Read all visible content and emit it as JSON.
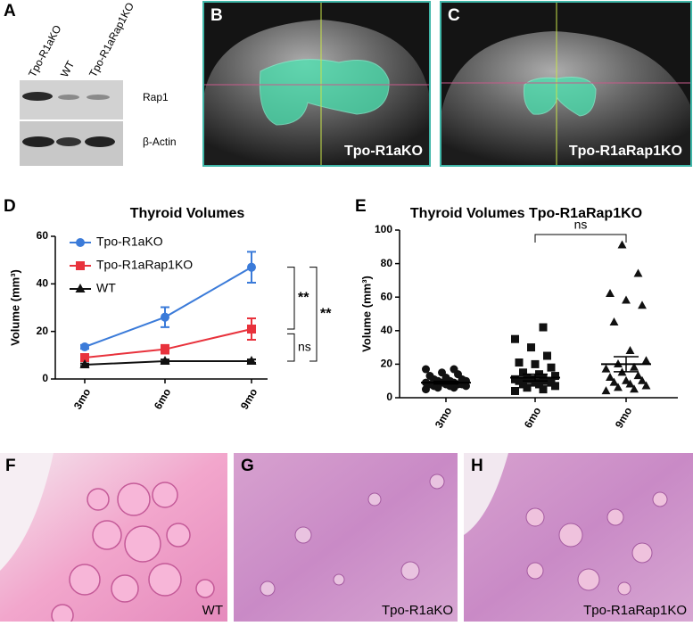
{
  "panels": {
    "A": {
      "label": "A",
      "lanes": [
        "Tpo-R1aKO",
        "WT",
        "Tpo-R1aRap1KO"
      ],
      "bands": [
        "Rap1",
        "β-Actin"
      ]
    },
    "B": {
      "label": "B",
      "caption": "Tpo-R1aKO"
    },
    "C": {
      "label": "C",
      "caption": "Tpo-R1aRap1KO"
    },
    "D": {
      "label": "D"
    },
    "E": {
      "label": "E"
    },
    "F": {
      "label": "F",
      "caption": "WT"
    },
    "G": {
      "label": "G",
      "caption": "Tpo-R1aKO"
    },
    "H": {
      "label": "H",
      "caption": "Tpo-R1aRap1KO"
    }
  },
  "chart_data": [
    {
      "type": "line",
      "title": "Thyroid Volumes",
      "y_label": "Volume (mm³)",
      "categories": [
        "3mo",
        "6mo",
        "9mo"
      ],
      "series": [
        {
          "name": "Tpo-R1aKO",
          "color": "#3b7bd9",
          "marker": "circle",
          "values": [
            13.5,
            26,
            47
          ],
          "errors": [
            0.8,
            4.2,
            6.5
          ]
        },
        {
          "name": "Tpo-R1aRap1KO",
          "color": "#e8323c",
          "marker": "square",
          "values": [
            9,
            12.5,
            21
          ],
          "errors": [
            0.8,
            1.8,
            4.5
          ]
        },
        {
          "name": "WT",
          "color": "#111111",
          "marker": "triangle",
          "values": [
            6,
            7.5,
            7.5
          ],
          "errors": [
            0.5,
            0.7,
            0.7
          ]
        }
      ],
      "ylim": [
        0,
        60
      ],
      "yticks": [
        0,
        20,
        40,
        60
      ],
      "annotations": [
        "**",
        "ns",
        "**"
      ]
    },
    {
      "type": "scatter",
      "title": "Thyroid Volumes Tpo-R1aRap1KO",
      "y_label": "Volume (mm³)",
      "categories": [
        "3mo",
        "6mo",
        "9mo"
      ],
      "color": "#111111",
      "markers": [
        "circle",
        "square",
        "triangle"
      ],
      "groups": [
        [
          5,
          6,
          6,
          7,
          7,
          7,
          8,
          8,
          8,
          8,
          9,
          9,
          9,
          10,
          10,
          10,
          11,
          11,
          12,
          13,
          14,
          15,
          17,
          17
        ],
        [
          4,
          5,
          6,
          7,
          8,
          8,
          9,
          9,
          10,
          10,
          11,
          11,
          12,
          12,
          13,
          14,
          15,
          18,
          20,
          21,
          25,
          30,
          35,
          42
        ],
        [
          4,
          5,
          6,
          7,
          8,
          9,
          10,
          10,
          12,
          13,
          15,
          17,
          18,
          20,
          22,
          28,
          45,
          55,
          58,
          62,
          74,
          91
        ]
      ],
      "means": [
        9,
        12,
        20
      ],
      "sems": [
        0.8,
        2,
        4.5
      ],
      "ylim": [
        0,
        100
      ],
      "yticks": [
        0,
        20,
        40,
        60,
        80,
        100
      ],
      "annotations": [
        "ns"
      ]
    }
  ]
}
